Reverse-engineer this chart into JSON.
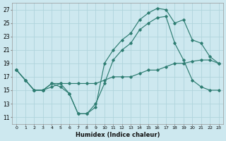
{
  "xlabel": "Humidex (Indice chaleur)",
  "bg_color": "#cde8ef",
  "grid_color": "#b0d4dc",
  "line_color": "#2e7d72",
  "xlim": [
    -0.5,
    23.5
  ],
  "ylim": [
    10,
    28
  ],
  "xticks": [
    0,
    1,
    2,
    3,
    4,
    5,
    6,
    7,
    8,
    9,
    10,
    11,
    12,
    13,
    14,
    15,
    16,
    17,
    18,
    19,
    20,
    21,
    22,
    23
  ],
  "yticks": [
    11,
    13,
    15,
    17,
    19,
    21,
    23,
    25,
    27
  ],
  "series": [
    {
      "x": [
        0,
        1,
        2,
        3,
        4,
        5,
        6,
        7,
        8,
        9,
        10,
        11,
        12,
        13,
        14,
        15,
        16,
        17,
        18,
        19,
        20,
        21,
        22,
        23
      ],
      "y": [
        18,
        16.5,
        15,
        15,
        15.5,
        16,
        16,
        16,
        16,
        16,
        16.5,
        17,
        17,
        17,
        17.5,
        18,
        18,
        18.5,
        19,
        19,
        19.3,
        19.5,
        19.5,
        19
      ]
    },
    {
      "x": [
        0,
        1,
        2,
        3,
        4,
        5,
        6,
        7,
        8,
        9,
        10,
        11,
        12,
        13,
        14,
        15,
        16,
        17,
        18,
        19,
        20,
        21,
        22,
        23
      ],
      "y": [
        18,
        16.5,
        15,
        15,
        16,
        16,
        14.5,
        11.5,
        11.5,
        12.5,
        19,
        21,
        22.5,
        23.5,
        25.5,
        26.5,
        27.2,
        27,
        25,
        25.5,
        22.5,
        22,
        20,
        19
      ]
    },
    {
      "x": [
        0,
        1,
        2,
        3,
        4,
        5,
        6,
        7,
        8,
        9,
        10,
        11,
        12,
        13,
        14,
        15,
        16,
        17,
        18,
        19,
        20,
        21,
        22,
        23
      ],
      "y": [
        18,
        16.5,
        15,
        15,
        16,
        15.5,
        14.5,
        11.5,
        11.5,
        13,
        16,
        19.5,
        21,
        22,
        24,
        25,
        25.8,
        26,
        22,
        19.5,
        16.5,
        15.5,
        15,
        15
      ]
    }
  ]
}
